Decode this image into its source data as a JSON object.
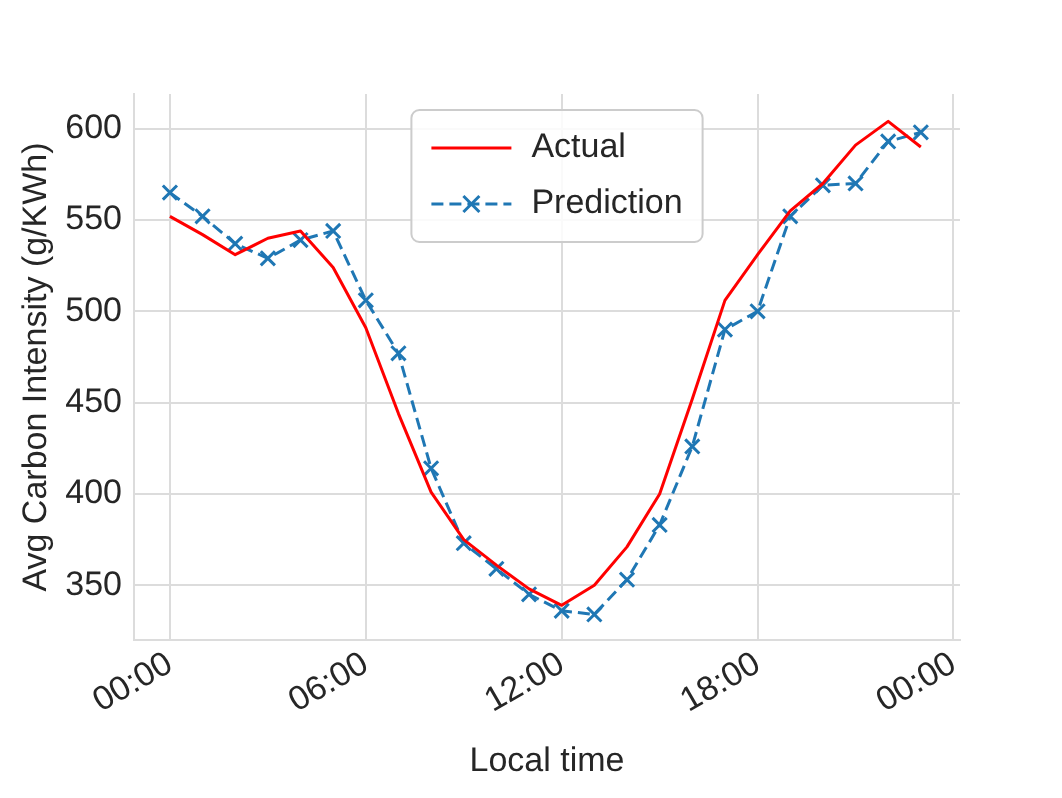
{
  "chart_data": {
    "type": "line",
    "xlabel": "Local time",
    "ylabel": "Avg Carbon Intensity (g/KWh)",
    "x": [
      0,
      1,
      2,
      3,
      4,
      5,
      6,
      7,
      8,
      9,
      10,
      11,
      12,
      13,
      14,
      15,
      16,
      17,
      18,
      19,
      20,
      21,
      22,
      23
    ],
    "series": [
      {
        "name": "Actual",
        "color": "#ff0000",
        "marker": "none",
        "line_style": "solid",
        "values": [
          552,
          542,
          531,
          540,
          544,
          524,
          491,
          444,
          401,
          375,
          361,
          348,
          339,
          350,
          371,
          400,
          452,
          506,
          531,
          555,
          570,
          591,
          604,
          590
        ]
      },
      {
        "name": "Prediction",
        "color": "#1f77b4",
        "marker": "cross",
        "line_style": "dashed",
        "values": [
          565,
          552,
          537,
          529,
          539,
          544,
          506,
          477,
          414,
          373,
          359,
          345,
          336,
          334,
          353,
          383,
          426,
          490,
          500,
          552,
          569,
          570,
          593,
          598
        ]
      }
    ],
    "xlim": [
      -1.1,
      24.2
    ],
    "xticks": [
      {
        "value": 0,
        "label": "00:00"
      },
      {
        "value": 6,
        "label": "06:00"
      },
      {
        "value": 12,
        "label": "12:00"
      },
      {
        "value": 18,
        "label": "18:00"
      },
      {
        "value": 24,
        "label": "00:00"
      }
    ],
    "ylim": [
      320,
      619
    ],
    "yticks": [
      350,
      400,
      450,
      500,
      550,
      600
    ],
    "grid": true,
    "legend": "top"
  }
}
